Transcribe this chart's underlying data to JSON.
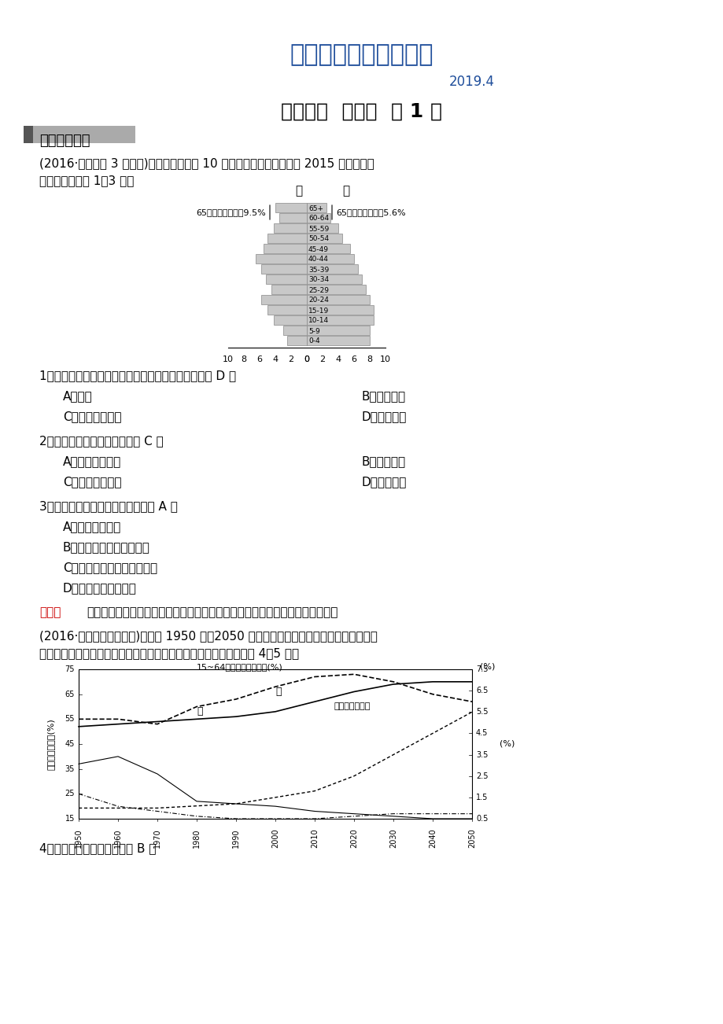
{
  "title": "最新地理精品教学资料",
  "title_color": "#1F4E9B",
  "subtitle": "2019.4",
  "subtitle_color": "#1F4E9B",
  "section_title": "第一部分  专题六  第 1 讲",
  "section_label": "逐题对点特训",
  "intro_text1": "(2016·山东青岛 3 月模拟)甲、乙为人口超 10 亿的国家，下图示意两国 2015 年人口年龄",
  "intro_text2": "结构。据此完成 1～3 题。",
  "pyramid_ages": [
    "65+",
    "60-64",
    "55-59",
    "50-54",
    "45-49",
    "40-44",
    "35-39",
    "30-34",
    "25-29",
    "20-24",
    "15-19",
    "10-14",
    "5-9",
    "0-4"
  ],
  "left_values": [
    4.0,
    3.5,
    4.2,
    5.0,
    5.5,
    6.5,
    5.8,
    5.2,
    4.5,
    5.8,
    5.0,
    4.2,
    3.0,
    2.5
  ],
  "right_values": [
    2.5,
    3.0,
    4.0,
    4.5,
    5.5,
    6.0,
    6.5,
    7.0,
    7.5,
    8.0,
    8.5,
    8.5,
    8.0,
    8.0
  ],
  "left_65_label": "65岁以上人口占比9.5%",
  "right_65_label": "65岁以上人口占比5.6%",
  "left_country": "甲",
  "right_country": "乙",
  "q1": "1．造成甲、乙两国人口年龄结构差异最大的原因是（ D ）",
  "q1a": "A．战争",
  "q1b": "B．自然灾害",
  "q1c": "C．经济发展水平",
  "q1d": "D．国家政策",
  "q2": "2．缓解甲国人口问题的对策（ C ）",
  "q2a": "A．控制人口增长",
  "q2b": "B．人口迁移",
  "q2c": "C．提升国民素质",
  "q2d": "D．奖励生育",
  "q3": "3．推测乙国人口年龄构成的影响（ A ）",
  "q3a": "A．具有成本优势",
  "q3b": "B．劳动力数量和质量上升",
  "q3c": "C．技术创新、新兴产业增加",
  "q3d": "D．促进产业结构调整",
  "analysis_label": "解析：",
  "analysis_text": "由题意知，甲为中国，乙为印度。在此基础上分析本组题，很易得出正确答案。",
  "intro2_text1": "(2016·浙江台州中学模拟)下图是 1950 年～2050 年中国死亡率、出生率、劳动人口比例、",
  "intro2_text2": "老年人口抚养比变化曲线和印度劳动人口比例变化曲线图。据图完成 4～5 题。",
  "q4": "4．下列组合正确的一组是（ B ）"
}
